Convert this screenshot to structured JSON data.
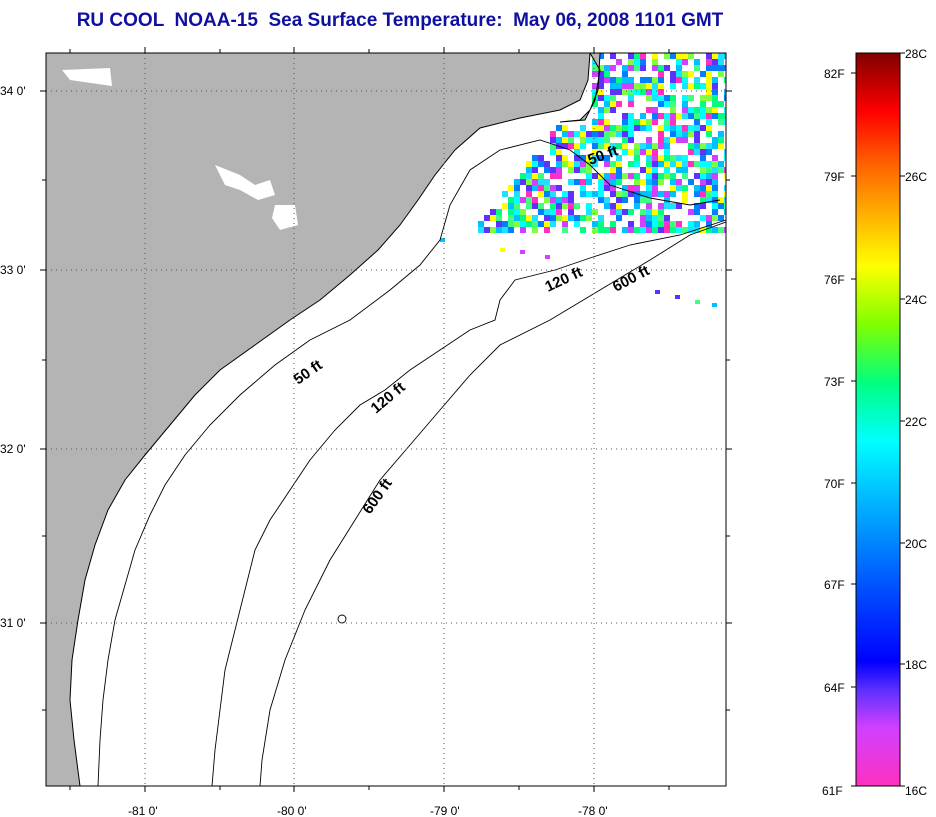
{
  "title": "RU COOL  NOAA-15  Sea Surface Temperature:  May 06, 2008 1101 GMT",
  "map": {
    "lat_labels": [
      "34 0'",
      "33 0'",
      "32 0'",
      "31 0'"
    ],
    "lon_labels": [
      "-81 0'",
      "-80 0'",
      "-79 0'",
      "-78 0'"
    ],
    "contours": [
      "50 ft",
      "120 ft",
      "600 ft"
    ],
    "colors": {
      "land": "#b4b4b4",
      "ocean": "#ffffff",
      "coastline": "#000000",
      "grid": "#555555"
    }
  },
  "colorbar": {
    "celsius_labels": [
      "28C",
      "26C",
      "24C",
      "22C",
      "20C",
      "18C",
      "16C"
    ],
    "fahrenheit_labels": [
      "82F",
      "79F",
      "76F",
      "73F",
      "70F",
      "67F",
      "64F",
      "61F"
    ]
  }
}
